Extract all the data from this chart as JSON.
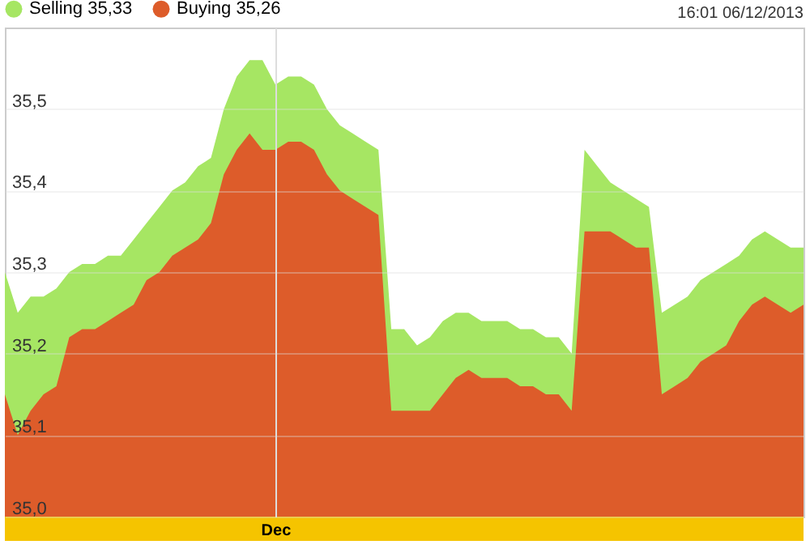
{
  "chart_data": {
    "type": "area",
    "annotations": [
      "16:01 06/12/2013"
    ],
    "categories": [
      null,
      null,
      null,
      null,
      null,
      null,
      null,
      null,
      null,
      null,
      null,
      null,
      null,
      null,
      null,
      null,
      null,
      null,
      null,
      null,
      null,
      "Dec",
      null,
      null,
      null,
      null,
      null,
      null,
      null,
      null,
      null,
      null,
      null,
      null,
      null,
      null,
      null,
      null,
      null,
      null,
      null,
      null,
      null,
      null,
      null,
      null,
      null,
      null,
      null,
      null,
      null,
      null,
      null,
      null,
      null,
      null,
      null,
      null,
      null,
      null,
      null,
      null,
      null
    ],
    "series": [
      {
        "name": "Selling 35,33",
        "color": "#a6e663",
        "values": [
          35.3,
          35.25,
          35.27,
          35.27,
          35.28,
          35.3,
          35.31,
          35.31,
          35.32,
          35.32,
          35.34,
          35.36,
          35.38,
          35.4,
          35.41,
          35.43,
          35.44,
          35.5,
          35.54,
          35.56,
          35.56,
          35.53,
          35.54,
          35.54,
          35.53,
          35.5,
          35.48,
          35.47,
          35.46,
          35.45,
          35.23,
          35.23,
          35.21,
          35.22,
          35.24,
          35.25,
          35.25,
          35.24,
          35.24,
          35.24,
          35.23,
          35.23,
          35.22,
          35.22,
          35.2,
          35.45,
          35.43,
          35.41,
          35.4,
          35.39,
          35.38,
          35.25,
          35.26,
          35.27,
          35.29,
          35.3,
          35.31,
          35.32,
          35.34,
          35.35,
          35.34,
          35.33,
          35.33
        ]
      },
      {
        "name": "Buying 35,26",
        "color": "#dd5c2a",
        "values": [
          35.15,
          35.1,
          35.13,
          35.15,
          35.16,
          35.22,
          35.23,
          35.23,
          35.24,
          35.25,
          35.26,
          35.29,
          35.3,
          35.32,
          35.33,
          35.34,
          35.36,
          35.42,
          35.45,
          35.47,
          35.45,
          35.45,
          35.46,
          35.46,
          35.45,
          35.42,
          35.4,
          35.39,
          35.38,
          35.37,
          35.13,
          35.13,
          35.13,
          35.13,
          35.15,
          35.17,
          35.18,
          35.17,
          35.17,
          35.17,
          35.16,
          35.16,
          35.15,
          35.15,
          35.13,
          35.35,
          35.35,
          35.35,
          35.34,
          35.33,
          35.33,
          35.15,
          35.16,
          35.17,
          35.19,
          35.2,
          35.21,
          35.24,
          35.26,
          35.27,
          35.26,
          35.25,
          35.26
        ]
      }
    ],
    "ylim": [
      35.0,
      35.6
    ],
    "yticks": [
      {
        "value": 35.0,
        "label": "35,0"
      },
      {
        "value": 35.1,
        "label": "35,1"
      },
      {
        "value": 35.2,
        "label": "35,2"
      },
      {
        "value": 35.3,
        "label": "35,3"
      },
      {
        "value": 35.4,
        "label": "35,4"
      },
      {
        "value": 35.5,
        "label": "35,5"
      }
    ],
    "grid": true,
    "legend": "top left"
  }
}
